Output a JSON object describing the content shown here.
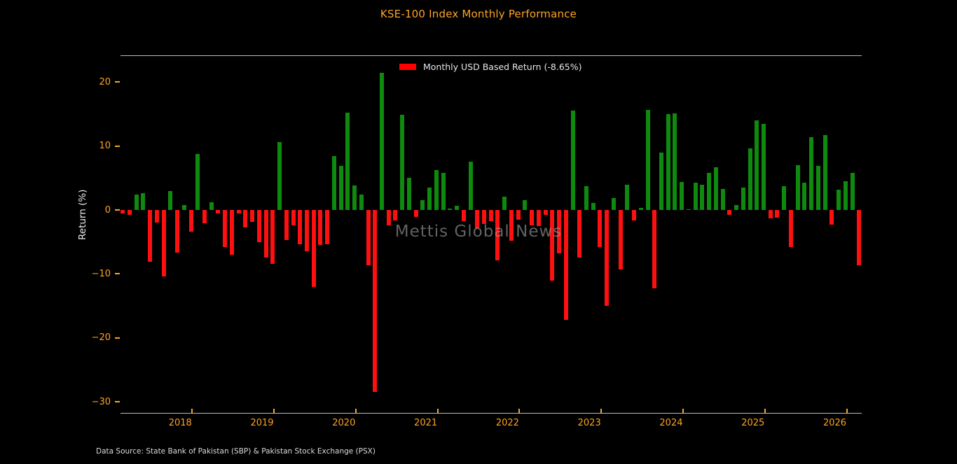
{
  "title": "KSE-100 Index Monthly Performance",
  "legend": {
    "label": "Monthly USD Based Return (-8.65%)",
    "swatch_color": "#ff0000"
  },
  "watermark": "Mettis Global News",
  "footer": "Data Source: State Bank of Pakistan (SBP) & Pakistan Stock Exchange (PSX)",
  "colors": {
    "background": "#000000",
    "accent_orange": "#ffa424",
    "spine": "#b0bec8",
    "positive_bar": "#0e8a0e",
    "negative_bar": "#fe1010",
    "text_light": "#e6e6e6"
  },
  "y_axis": {
    "label": "Return (%)",
    "ticks": [
      20,
      10,
      0,
      -10,
      -20,
      -30
    ],
    "range": [
      -31.7,
      24.1
    ]
  },
  "x_axis": {
    "years": [
      2018,
      2019,
      2020,
      2021,
      2022,
      2023,
      2024,
      2025,
      2026
    ]
  },
  "chart_data": {
    "type": "bar",
    "title": "KSE-100 Index Monthly Performance",
    "ylabel": "Return (%)",
    "ylim": [
      -31.7,
      24.1
    ],
    "grid": false,
    "legend_position": "top-center",
    "start_month": "2017-02",
    "values": [
      -0.5,
      -0.8,
      2.4,
      2.6,
      -8.1,
      -2.0,
      -10.4,
      2.9,
      -6.7,
      0.8,
      -3.4,
      8.8,
      -2.1,
      1.2,
      -0.5,
      -5.8,
      -7.0,
      -0.6,
      -2.7,
      -1.9,
      -5.0,
      -7.4,
      -8.4,
      10.6,
      -4.7,
      -2.4,
      -5.4,
      -6.5,
      -12.0,
      -5.5,
      -5.4,
      8.4,
      6.9,
      15.2,
      3.8,
      2.4,
      -8.6,
      -28.5,
      21.4,
      -2.4,
      -1.6,
      14.9,
      5.0,
      -1.1,
      1.5,
      3.5,
      6.2,
      5.8,
      0.25,
      0.65,
      -1.7,
      7.6,
      -2.8,
      -2.2,
      -1.8,
      -7.9,
      2.1,
      -4.85,
      -1.5,
      1.5,
      -2.4,
      -2.5,
      -0.8,
      -11.1,
      -6.8,
      -17.2,
      15.5,
      -7.4,
      3.75,
      1.1,
      -5.8,
      -15.0,
      1.9,
      -9.3,
      3.9,
      -1.65,
      0.3,
      15.6,
      -12.2,
      9.0,
      15.0,
      15.1,
      4.4,
      0.1,
      4.3,
      3.9,
      5.8,
      6.7,
      3.3,
      -0.8,
      0.8,
      3.5,
      9.6,
      14.0,
      13.5,
      -1.35,
      -1.2,
      3.75,
      -5.8,
      7.0,
      4.3,
      11.4,
      6.9,
      11.7,
      -2.3,
      3.2,
      4.5,
      5.8,
      -8.65
    ]
  }
}
